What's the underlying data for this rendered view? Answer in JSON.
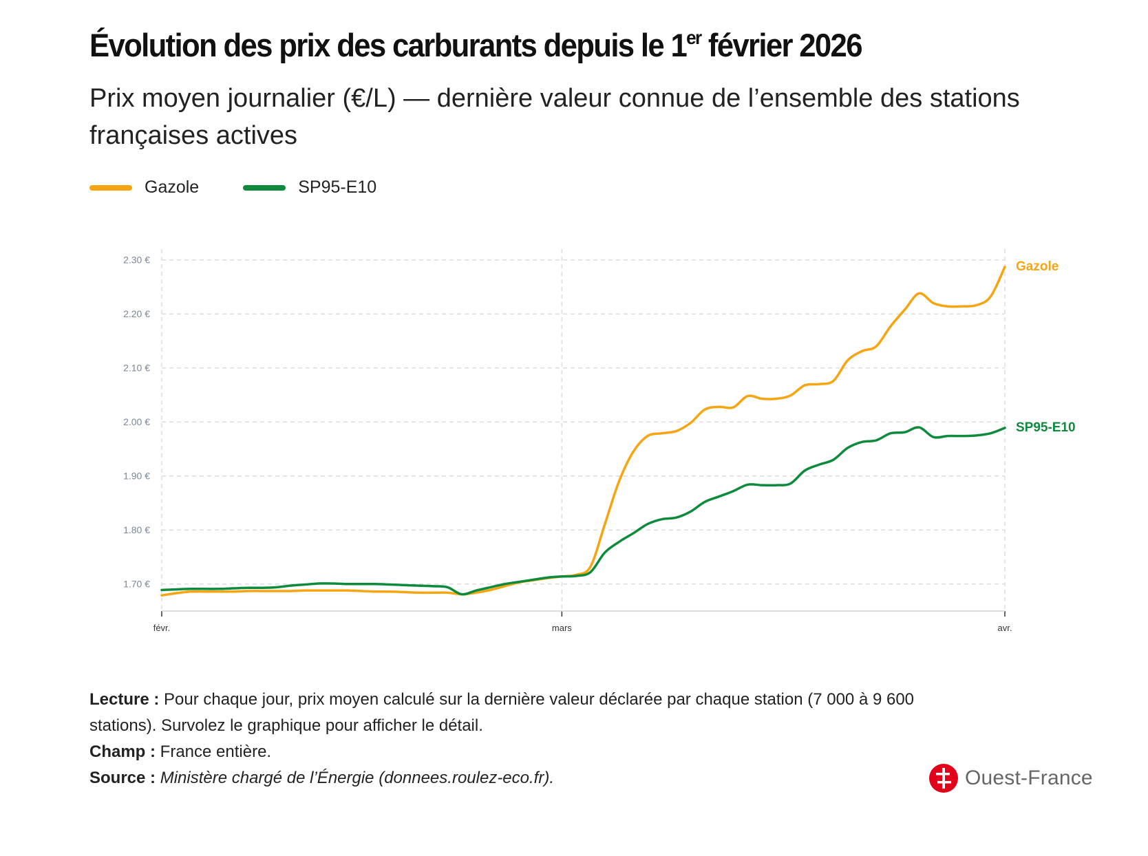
{
  "header": {
    "title_main": "Évolution des prix des carburants depuis le 1",
    "title_sup": "er",
    "title_end": " février 2026",
    "subtitle": "Prix moyen journalier (€/L) — dernière valeur connue de l’ensemble des stations françaises actives"
  },
  "legend": [
    {
      "label": "Gazole",
      "color": "#f5a511"
    },
    {
      "label": "SP95-E10",
      "color": "#0e8a3c"
    }
  ],
  "chart_data": {
    "type": "line",
    "title": "Évolution des prix des carburants depuis le 1er février 2026",
    "xlabel": "",
    "ylabel": "Prix moyen journalier (€/L)",
    "x_ticks": [
      {
        "day": 0,
        "label": "févr."
      },
      {
        "day": 28,
        "label": "mars"
      },
      {
        "day": 59,
        "label": "avr."
      }
    ],
    "xlim": [
      0,
      59
    ],
    "ylim": [
      1.65,
      2.32
    ],
    "y_ticks": [
      {
        "value": 1.7,
        "label": "1.70 €"
      },
      {
        "value": 1.8,
        "label": "1.80 €"
      },
      {
        "value": 1.9,
        "label": "1.90 €"
      },
      {
        "value": 2.0,
        "label": "2.00 €"
      },
      {
        "value": 2.1,
        "label": "2.10 €"
      },
      {
        "value": 2.2,
        "label": "2.20 €"
      },
      {
        "value": 2.3,
        "label": "2.30 €"
      }
    ],
    "grid": true,
    "series": [
      {
        "name": "Gazole",
        "color": "#f5a511",
        "end_label": "Gazole",
        "points": [
          [
            0,
            1.679
          ],
          [
            1,
            1.683
          ],
          [
            2,
            1.686
          ],
          [
            3,
            1.686
          ],
          [
            4,
            1.686
          ],
          [
            5,
            1.686
          ],
          [
            6,
            1.687
          ],
          [
            7,
            1.687
          ],
          [
            8,
            1.687
          ],
          [
            9,
            1.687
          ],
          [
            10,
            1.688
          ],
          [
            11,
            1.688
          ],
          [
            12,
            1.688
          ],
          [
            13,
            1.688
          ],
          [
            14,
            1.687
          ],
          [
            15,
            1.686
          ],
          [
            16,
            1.686
          ],
          [
            17,
            1.685
          ],
          [
            18,
            1.684
          ],
          [
            19,
            1.684
          ],
          [
            20,
            1.684
          ],
          [
            21,
            1.681
          ],
          [
            22,
            1.684
          ],
          [
            23,
            1.689
          ],
          [
            24,
            1.696
          ],
          [
            25,
            1.703
          ],
          [
            26,
            1.707
          ],
          [
            27,
            1.711
          ],
          [
            28,
            1.714
          ],
          [
            29,
            1.717
          ],
          [
            30,
            1.732
          ],
          [
            31,
            1.81
          ],
          [
            32,
            1.89
          ],
          [
            33,
            1.945
          ],
          [
            34,
            1.974
          ],
          [
            35,
            1.979
          ],
          [
            36,
            1.983
          ],
          [
            37,
            1.998
          ],
          [
            38,
            2.023
          ],
          [
            39,
            2.028
          ],
          [
            40,
            2.027
          ],
          [
            41,
            2.048
          ],
          [
            42,
            2.043
          ],
          [
            43,
            2.043
          ],
          [
            44,
            2.049
          ],
          [
            45,
            2.068
          ],
          [
            46,
            2.07
          ],
          [
            47,
            2.076
          ],
          [
            48,
            2.114
          ],
          [
            49,
            2.131
          ],
          [
            50,
            2.14
          ],
          [
            51,
            2.177
          ],
          [
            52,
            2.208
          ],
          [
            53,
            2.238
          ],
          [
            54,
            2.22
          ],
          [
            55,
            2.214
          ],
          [
            56,
            2.214
          ],
          [
            57,
            2.216
          ],
          [
            58,
            2.232
          ],
          [
            59,
            2.287
          ]
        ]
      },
      {
        "name": "SP95-E10",
        "color": "#0e8a3c",
        "end_label": "SP95-E10",
        "points": [
          [
            0,
            1.689
          ],
          [
            1,
            1.69
          ],
          [
            2,
            1.691
          ],
          [
            3,
            1.691
          ],
          [
            4,
            1.691
          ],
          [
            5,
            1.692
          ],
          [
            6,
            1.693
          ],
          [
            7,
            1.693
          ],
          [
            8,
            1.694
          ],
          [
            9,
            1.697
          ],
          [
            10,
            1.699
          ],
          [
            11,
            1.701
          ],
          [
            12,
            1.701
          ],
          [
            13,
            1.7
          ],
          [
            14,
            1.7
          ],
          [
            15,
            1.7
          ],
          [
            16,
            1.699
          ],
          [
            17,
            1.698
          ],
          [
            18,
            1.697
          ],
          [
            19,
            1.696
          ],
          [
            20,
            1.694
          ],
          [
            21,
            1.681
          ],
          [
            22,
            1.688
          ],
          [
            23,
            1.694
          ],
          [
            24,
            1.7
          ],
          [
            25,
            1.704
          ],
          [
            26,
            1.708
          ],
          [
            27,
            1.712
          ],
          [
            28,
            1.714
          ],
          [
            29,
            1.715
          ],
          [
            30,
            1.722
          ],
          [
            31,
            1.758
          ],
          [
            32,
            1.778
          ],
          [
            33,
            1.794
          ],
          [
            34,
            1.811
          ],
          [
            35,
            1.82
          ],
          [
            36,
            1.823
          ],
          [
            37,
            1.834
          ],
          [
            38,
            1.852
          ],
          [
            39,
            1.862
          ],
          [
            40,
            1.872
          ],
          [
            41,
            1.884
          ],
          [
            42,
            1.883
          ],
          [
            43,
            1.883
          ],
          [
            44,
            1.886
          ],
          [
            45,
            1.91
          ],
          [
            46,
            1.921
          ],
          [
            47,
            1.93
          ],
          [
            48,
            1.952
          ],
          [
            49,
            1.963
          ],
          [
            50,
            1.966
          ],
          [
            51,
            1.979
          ],
          [
            52,
            1.981
          ],
          [
            53,
            1.99
          ],
          [
            54,
            1.972
          ],
          [
            55,
            1.974
          ],
          [
            56,
            1.974
          ],
          [
            57,
            1.975
          ],
          [
            58,
            1.979
          ],
          [
            59,
            1.989
          ]
        ]
      }
    ]
  },
  "notes": {
    "lecture_label": "Lecture :",
    "lecture_text": " Pour chaque jour, prix moyen calculé sur la dernière valeur déclarée par chaque station (7 000 à 9 600 stations). Survolez le graphique pour afficher le détail.",
    "champ_label": "Champ :",
    "champ_text": " France entière.",
    "source_label": "Source :",
    "source_text": "Ministère chargé de l’Énergie (donnees.roulez-eco.fr)."
  },
  "logo": {
    "text": "Ouest-France",
    "color": "#e2001a"
  }
}
